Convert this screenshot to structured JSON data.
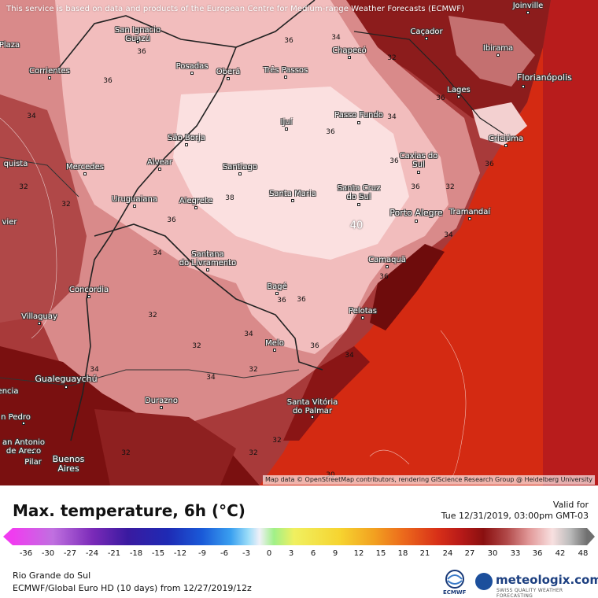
{
  "map": {
    "disclaimer": "This service is based on data and products of the European Centre for Medium-range Weather Forecasts (ECMWF)",
    "attribution": "Map data © OpenStreetMap contributors, rendering GIScience Research Group @ Heidelberg University",
    "cities": [
      {
        "name": "San Ignacio\nGuazú"
      },
      {
        "name": "Plaza"
      },
      {
        "name": "Corrientes"
      },
      {
        "name": "Posadas"
      },
      {
        "name": "Oberá"
      },
      {
        "name": "Três Passos"
      },
      {
        "name": "Chapecó"
      },
      {
        "name": "Caçador"
      },
      {
        "name": "Joinville"
      },
      {
        "name": "Ibirama"
      },
      {
        "name": "Florianópolis"
      },
      {
        "name": "Lages"
      },
      {
        "name": "Passo Fundo"
      },
      {
        "name": "Ijuí"
      },
      {
        "name": "São Borja"
      },
      {
        "name": "Criciúma"
      },
      {
        "name": "Alvear"
      },
      {
        "name": "Caxias do\nSul"
      },
      {
        "name": "Mercedes"
      },
      {
        "name": "Santiago"
      },
      {
        "name": "Santa Maria"
      },
      {
        "name": "Santa Cruz\ndo Sul"
      },
      {
        "name": "Uruguaiana"
      },
      {
        "name": "Alegrete"
      },
      {
        "name": "Porto Alegre"
      },
      {
        "name": "Tramandaí"
      },
      {
        "name": "Santana\ndo Livramento"
      },
      {
        "name": "Camaquã"
      },
      {
        "name": "Concordia"
      },
      {
        "name": "Bagé"
      },
      {
        "name": "Villaguay"
      },
      {
        "name": "Pelotas"
      },
      {
        "name": "Melo"
      },
      {
        "name": "Gualeguaychú"
      },
      {
        "name": "Durazno"
      },
      {
        "name": "Santa Vitória\ndo Palmar"
      },
      {
        "name": "n Pedro"
      },
      {
        "name": "an Antonio\nde Areco"
      },
      {
        "name": "Pilar"
      },
      {
        "name": "Buenos\nAires"
      },
      {
        "name": "quista"
      },
      {
        "name": "vier"
      },
      {
        "name": "encia"
      }
    ],
    "contour_labels": [
      "36",
      "36",
      "34",
      "32",
      "36",
      "34",
      "36",
      "34",
      "36",
      "38",
      "40",
      "32",
      "36",
      "36",
      "32",
      "34",
      "36",
      "36",
      "34",
      "32",
      "34",
      "32",
      "32",
      "34",
      "36",
      "34",
      "36",
      "32",
      "32",
      "32",
      "32",
      "34",
      "36",
      "36",
      "30"
    ]
  },
  "legend": {
    "title": "Max. temperature, 6h (°C)",
    "valid_label": "Valid for",
    "valid_time": "Tue 12/31/2019, 03:00pm GMT-03",
    "ticks": [
      "-36",
      "-30",
      "-27",
      "-24",
      "-21",
      "-18",
      "-15",
      "-12",
      "-9",
      "-6",
      "-3",
      "0",
      "3",
      "6",
      "9",
      "12",
      "15",
      "18",
      "21",
      "24",
      "27",
      "30",
      "33",
      "36",
      "42",
      "48"
    ],
    "region": "Rio Grande do Sul",
    "model_line": "ECMWF/Global Euro HD (10 days)  from  12/27/2019/12z"
  },
  "branding": {
    "ecmwf_label": "ECMWF",
    "meteologix_name": "meteologix.com",
    "meteologix_tagline": "SWISS QUALITY WEATHER FORECASTING"
  },
  "colors": {
    "ocean": "#d42a12",
    "land_hot": "#f6c9c9",
    "land_warm": "#d98a8a",
    "land_mid": "#a83a3a",
    "land_dark": "#7a1010"
  }
}
